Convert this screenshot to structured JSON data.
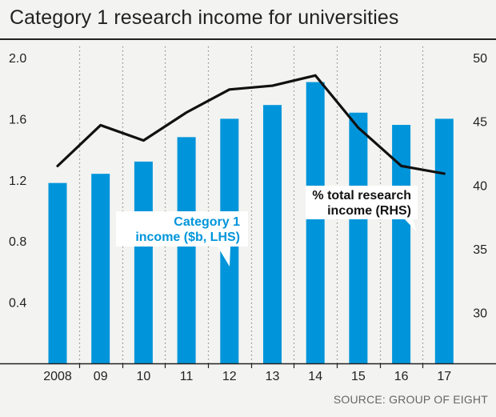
{
  "chart_data": {
    "type": "bar+line",
    "title": "Category 1 research income for universities",
    "categories": [
      "2008",
      "09",
      "10",
      "11",
      "12",
      "13",
      "14",
      "15",
      "16",
      "17"
    ],
    "series": [
      {
        "name": "Category 1 income ($b, LHS)",
        "label_lines": [
          "Category 1",
          "income ($b, LHS)"
        ],
        "type": "bar",
        "axis": "left",
        "color": "#0095da",
        "values": [
          1.18,
          1.24,
          1.32,
          1.48,
          1.6,
          1.69,
          1.84,
          1.64,
          1.56,
          1.6
        ]
      },
      {
        "name": "% total research income (RHS)",
        "label_lines": [
          "% total research",
          "income (RHS)"
        ],
        "type": "line",
        "axis": "right",
        "color": "#111111",
        "values": [
          41.5,
          44.7,
          43.5,
          45.7,
          47.5,
          47.8,
          48.6,
          44.5,
          41.5,
          40.9
        ]
      }
    ],
    "y_left": {
      "min": 0.0,
      "max": 2.0,
      "ticks": [
        "2.0",
        "1.6",
        "1.2",
        "0.8",
        "0.4"
      ]
    },
    "y_right": {
      "min": 25,
      "max": 50,
      "ticks": [
        "50",
        "45",
        "40",
        "35",
        "30"
      ]
    },
    "grid": "vertical dotted",
    "source": "SOURCE: GROUP OF EIGHT"
  }
}
